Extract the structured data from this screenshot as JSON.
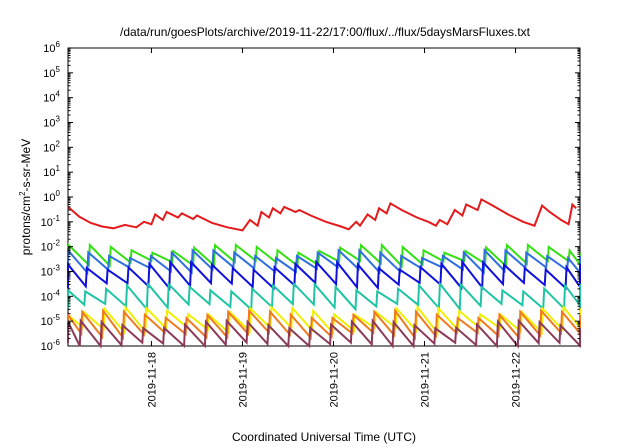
{
  "chart_data": {
    "type": "line",
    "title": "/data/run/goesPlots/archive/2019-11-22/17:00/flux/../flux/5daysMarsFluxes.txt",
    "xlabel": "Coordinated Universal Time (UTC)",
    "ylabel_base": "protons/cm",
    "ylabel_sup": "2",
    "ylabel_rest": "-s-sr-MeV",
    "x_range": [
      "2019-11-17T02:00",
      "2019-11-22T17:00"
    ],
    "y_scale": "log",
    "ylim": [
      1e-06,
      1000000.0
    ],
    "y_ticks": [
      {
        "base": "10",
        "exp": "-6",
        "value": 1e-06
      },
      {
        "base": "10",
        "exp": "-5",
        "value": 1e-05
      },
      {
        "base": "10",
        "exp": "-4",
        "value": 0.0001
      },
      {
        "base": "10",
        "exp": "-3",
        "value": 0.001
      },
      {
        "base": "10",
        "exp": "-2",
        "value": 0.01
      },
      {
        "base": "10",
        "exp": "-1",
        "value": 0.1
      },
      {
        "base": "10",
        "exp": "0",
        "value": 1
      },
      {
        "base": "10",
        "exp": "1",
        "value": 10
      },
      {
        "base": "10",
        "exp": "2",
        "value": 100
      },
      {
        "base": "10",
        "exp": "3",
        "value": 1000
      },
      {
        "base": "10",
        "exp": "4",
        "value": 10000
      },
      {
        "base": "10",
        "exp": "5",
        "value": 100000
      },
      {
        "base": "10",
        "exp": "6",
        "value": 1000000
      }
    ],
    "x_ticks": [
      "2019-11-18",
      "2019-11-19",
      "2019-11-20",
      "2019-11-21",
      "2019-11-22"
    ],
    "grid": false,
    "series": [
      {
        "color": "#e41a1c",
        "points": [
          [
            "2019-11-17T02:00",
            0.4
          ],
          [
            "2019-11-17T05:00",
            0.16
          ],
          [
            "2019-11-17T08:00",
            0.09
          ],
          [
            "2019-11-17T11:00",
            0.065
          ],
          [
            "2019-11-17T14:00",
            0.055
          ],
          [
            "2019-11-17T17:00",
            0.075
          ],
          [
            "2019-11-17T20:00",
            0.06
          ],
          [
            "2019-11-17T22:00",
            0.1
          ],
          [
            "2019-11-18T00:00",
            0.08
          ],
          [
            "2019-11-18T01:00",
            0.2
          ],
          [
            "2019-11-18T03:00",
            0.12
          ],
          [
            "2019-11-18T04:00",
            0.25
          ],
          [
            "2019-11-18T07:00",
            0.15
          ],
          [
            "2019-11-18T08:00",
            0.22
          ],
          [
            "2019-11-18T11:00",
            0.13
          ],
          [
            "2019-11-18T12:00",
            0.18
          ],
          [
            "2019-11-18T16:00",
            0.09
          ],
          [
            "2019-11-18T20:00",
            0.06
          ],
          [
            "2019-11-19T00:00",
            0.045
          ],
          [
            "2019-11-19T02:00",
            0.12
          ],
          [
            "2019-11-19T04:00",
            0.07
          ],
          [
            "2019-11-19T05:00",
            0.25
          ],
          [
            "2019-11-19T07:00",
            0.15
          ],
          [
            "2019-11-19T08:00",
            0.35
          ],
          [
            "2019-11-19T10:00",
            0.22
          ],
          [
            "2019-11-19T11:00",
            0.4
          ],
          [
            "2019-11-19T14:00",
            0.25
          ],
          [
            "2019-11-19T15:00",
            0.3
          ],
          [
            "2019-11-19T18:00",
            0.18
          ],
          [
            "2019-11-19T22:00",
            0.1
          ],
          [
            "2019-11-20T02:00",
            0.065
          ],
          [
            "2019-11-20T04:00",
            0.05
          ],
          [
            "2019-11-20T06:00",
            0.1
          ],
          [
            "2019-11-20T07:00",
            0.07
          ],
          [
            "2019-11-20T09:00",
            0.2
          ],
          [
            "2019-11-20T11:00",
            0.12
          ],
          [
            "2019-11-20T12:00",
            0.35
          ],
          [
            "2019-11-20T14:00",
            0.22
          ],
          [
            "2019-11-20T15:00",
            0.55
          ],
          [
            "2019-11-20T18:00",
            0.3
          ],
          [
            "2019-11-20T22:00",
            0.15
          ],
          [
            "2019-11-21T01:00",
            0.1
          ],
          [
            "2019-11-21T03:00",
            0.07
          ],
          [
            "2019-11-21T04:00",
            0.12
          ],
          [
            "2019-11-21T06:00",
            0.08
          ],
          [
            "2019-11-21T08:00",
            0.3
          ],
          [
            "2019-11-21T10:00",
            0.18
          ],
          [
            "2019-11-21T11:00",
            0.5
          ],
          [
            "2019-11-21T14:00",
            0.3
          ],
          [
            "2019-11-21T15:00",
            0.8
          ],
          [
            "2019-11-21T18:00",
            0.45
          ],
          [
            "2019-11-21T22:00",
            0.2
          ],
          [
            "2019-11-22T02:00",
            0.1
          ],
          [
            "2019-11-22T05:00",
            0.07
          ],
          [
            "2019-11-22T07:00",
            0.45
          ],
          [
            "2019-11-22T09:00",
            0.25
          ],
          [
            "2019-11-22T12:00",
            0.12
          ],
          [
            "2019-11-22T14:00",
            0.08
          ],
          [
            "2019-11-22T15:00",
            0.5
          ],
          [
            "2019-11-22T16:00",
            0.35
          ]
        ]
      },
      {
        "color": "#33e011",
        "base": 0.0022,
        "amp": 4.0,
        "period_h": 5.5,
        "phase": 0.0
      },
      {
        "color": "#2f6fe0",
        "base": 0.0012,
        "amp": 4.5,
        "period_h": 5.5,
        "phase": 0.4
      },
      {
        "color": "#1010dd",
        "base": 0.00028,
        "amp": 6.5,
        "period_h": 5.5,
        "phase": 0.8
      },
      {
        "color": "#1fc4a4",
        "base": 4e-05,
        "amp": 6.0,
        "period_h": 5.5,
        "phase": 1.2
      },
      {
        "color": "#f0f000",
        "base": 4.5e-06,
        "amp": 6.0,
        "period_h": 5.5,
        "phase": 1.6
      },
      {
        "color": "#f07a20",
        "base": 2.8e-06,
        "amp": 7.0,
        "period_h": 5.5,
        "phase": 2.0
      },
      {
        "color": "#8b3a5a",
        "base": 1.1e-06,
        "amp": 7.0,
        "period_h": 5.5,
        "phase": 2.4
      }
    ]
  }
}
